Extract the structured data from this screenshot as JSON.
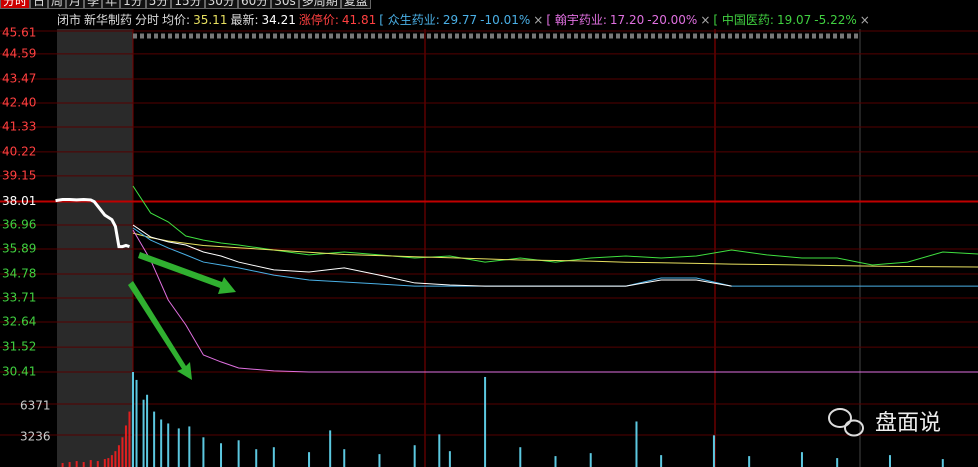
{
  "toolbar": {
    "tabs": [
      "分时",
      "日",
      "周",
      "月",
      "季",
      "年",
      "1分",
      "5分",
      "15分",
      "30分",
      "60分",
      "30s",
      "多周期",
      "复盘"
    ]
  },
  "info": {
    "status": "闭市",
    "name": "新华制药",
    "mode": "分时",
    "avg_label": "均价:",
    "avg": "35.11",
    "last_label": "最新:",
    "last": "34.21",
    "limit_label": "涨停价:",
    "limit": "41.81",
    "compare": [
      {
        "name": "[ 众生药业:",
        "price": "29.77",
        "change": "-10.01%",
        "close": "×",
        "color": "#4ab0e6"
      },
      {
        "name": "[ 翰宇药业:",
        "price": "17.20",
        "change": "-20.00%",
        "close": "×",
        "color": "#e070e0"
      },
      {
        "name": "[ 中国医药:",
        "price": "19.07",
        "change": "-5.22%",
        "close": "×",
        "color": "#40d040"
      }
    ]
  },
  "chart_data": {
    "type": "line",
    "xlim": [
      -22,
      240
    ],
    "ylim": [
      30.41,
      45.61
    ],
    "yticks": [
      45.61,
      44.59,
      43.47,
      {
        "value": 42.4,
        "label": "42.40"
      },
      41.33,
      40.22,
      39.15,
      38.01,
      36.96,
      35.89,
      34.78,
      33.71,
      32.64,
      31.52,
      30.41
    ],
    "x": [
      0,
      5,
      10,
      15,
      20,
      25,
      30,
      40,
      50,
      60,
      70,
      80,
      90,
      100,
      110,
      120,
      130,
      140,
      150,
      160,
      170,
      180,
      190,
      200,
      210,
      220,
      230,
      240
    ],
    "series": [
      {
        "color": "#40e040",
        "values": [
          38.7,
          37.5,
          37.1,
          36.47,
          36.29,
          36.16,
          36.07,
          35.85,
          35.63,
          35.76,
          35.63,
          35.49,
          35.58,
          35.31,
          35.49,
          35.31,
          35.49,
          35.58,
          35.49,
          35.58,
          35.85,
          35.63,
          35.49,
          35.49,
          35.18,
          35.31,
          35.76,
          35.67
        ]
      },
      {
        "color": "#e8e060",
        "values": [
          36.6,
          36.4,
          36.25,
          36.15,
          36.05,
          36.0,
          35.95,
          35.85,
          35.75,
          35.65,
          35.6,
          35.55,
          35.5,
          35.45,
          35.4,
          35.38,
          35.35,
          35.3,
          35.28,
          35.25,
          35.22,
          35.2,
          35.18,
          35.15,
          35.13,
          35.11,
          35.1,
          35.09
        ]
      },
      {
        "color": "#4ab0e6",
        "values": [
          36.83,
          36.29,
          35.94,
          35.63,
          35.31,
          35.18,
          35.05,
          34.73,
          34.51,
          34.42,
          34.33,
          34.24,
          34.24,
          34.24,
          34.24,
          34.24,
          34.24,
          34.24,
          34.6,
          34.6,
          34.24,
          34.24,
          34.24,
          34.24,
          34.24,
          34.24,
          34.24,
          34.24
        ]
      },
      {
        "color": "#ffffff",
        "values": [
          36.96,
          36.43,
          36.21,
          36.07,
          35.76,
          35.58,
          35.31,
          34.96,
          34.87,
          35.05,
          34.73,
          34.38,
          34.29,
          34.24,
          34.24,
          34.24,
          34.24,
          34.24,
          34.51,
          34.51,
          34.24,
          null,
          null,
          null,
          null,
          null,
          null,
          null
        ]
      },
      {
        "color": "#e070e0",
        "values": [
          36.74,
          35.4,
          33.62,
          32.51,
          31.17,
          30.86,
          30.59,
          30.46,
          30.41,
          30.41,
          30.41,
          30.41,
          30.41,
          30.41,
          30.41,
          30.41,
          30.41,
          30.41,
          30.41,
          30.41,
          30.41,
          30.41,
          30.41,
          30.41,
          30.41,
          30.41,
          30.41,
          30.41
        ]
      }
    ],
    "pre_x": [
      -22,
      -20,
      -18,
      -16,
      -14,
      -12,
      -11,
      -10,
      -8,
      -6,
      -5,
      -4,
      -3,
      -2,
      -1
    ],
    "pre_values": [
      38.05,
      38.1,
      38.1,
      38.08,
      38.1,
      38.08,
      38.0,
      37.8,
      37.4,
      37.2,
      36.9,
      36.0,
      36.0,
      36.05,
      36.0
    ],
    "pre_color": "#ffffff",
    "vlim": [
      0,
      9600
    ],
    "vticks": [
      6371,
      3236
    ],
    "volume": {
      "x": [
        0,
        1,
        3,
        4,
        6,
        8,
        10,
        13,
        16,
        20,
        25,
        30,
        35,
        40,
        50,
        56,
        60,
        70,
        80,
        87,
        90,
        100,
        110,
        120,
        130,
        143,
        150,
        165,
        175,
        190,
        200,
        215,
        230
      ],
      "values": [
        9600,
        8800,
        6800,
        7300,
        5600,
        4800,
        4400,
        3900,
        4100,
        3000,
        2400,
        2700,
        1800,
        2000,
        1500,
        3700,
        1800,
        1300,
        2200,
        3300,
        1600,
        9100,
        2000,
        1100,
        1400,
        4600,
        1200,
        3200,
        1100,
        1500,
        900,
        1200,
        800
      ],
      "color": "#5cc8e0"
    },
    "pre_volume": {
      "x": [
        -20,
        -18,
        -16,
        -14,
        -12,
        -10,
        -8,
        -7,
        -6,
        -5,
        -4,
        -3,
        -2,
        -1
      ],
      "values": [
        400,
        500,
        600,
        500,
        700,
        600,
        800,
        900,
        1200,
        1600,
        2200,
        3000,
        4200,
        5600
      ],
      "color": "#e02020"
    }
  },
  "watermark": "盘面说"
}
